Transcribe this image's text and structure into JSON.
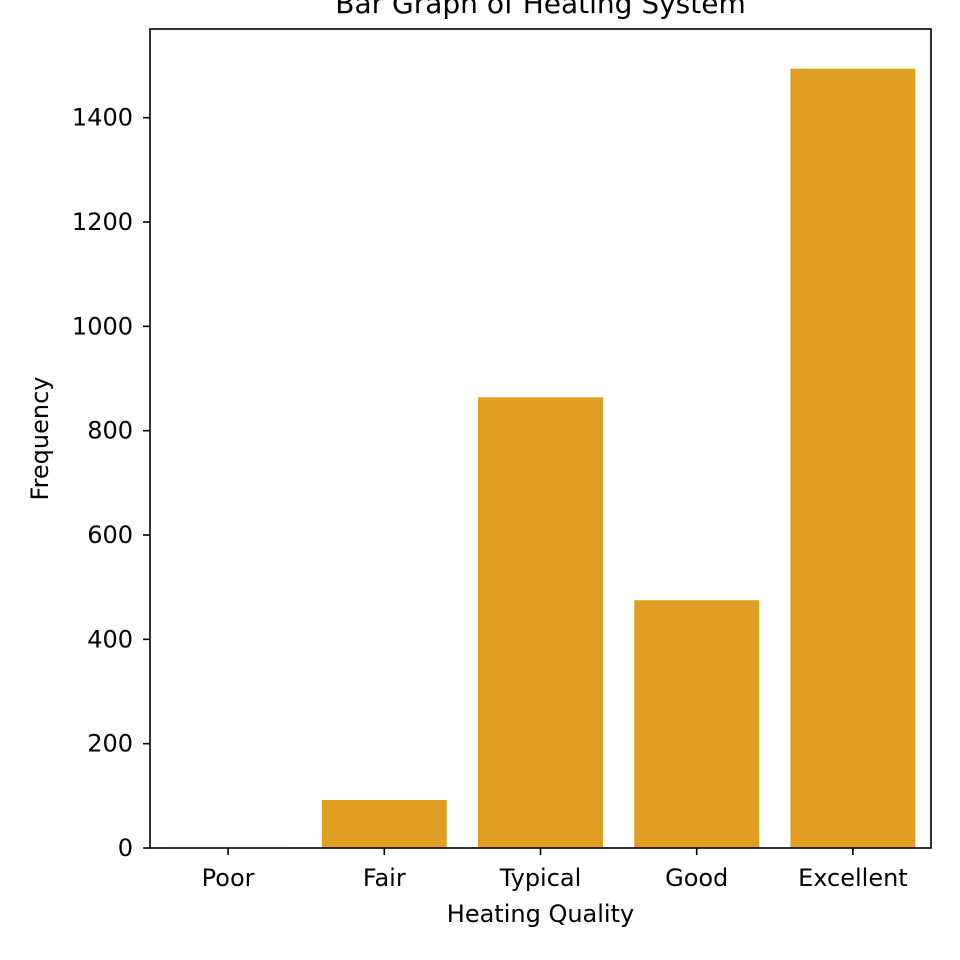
{
  "chart_data": {
    "type": "bar",
    "title": "Bar Graph of Heating System",
    "xlabel": "Heating Quality",
    "ylabel": "Frequency",
    "categories": [
      "Poor",
      "Fair",
      "Typical",
      "Good",
      "Excellent"
    ],
    "values": [
      1,
      92,
      864,
      475,
      1494
    ],
    "ylim": [
      0,
      1570
    ],
    "yticks": [
      0,
      200,
      400,
      600,
      800,
      1000,
      1200,
      1400
    ],
    "bar_color": "#e09e22",
    "grid": false,
    "legend": "none"
  }
}
